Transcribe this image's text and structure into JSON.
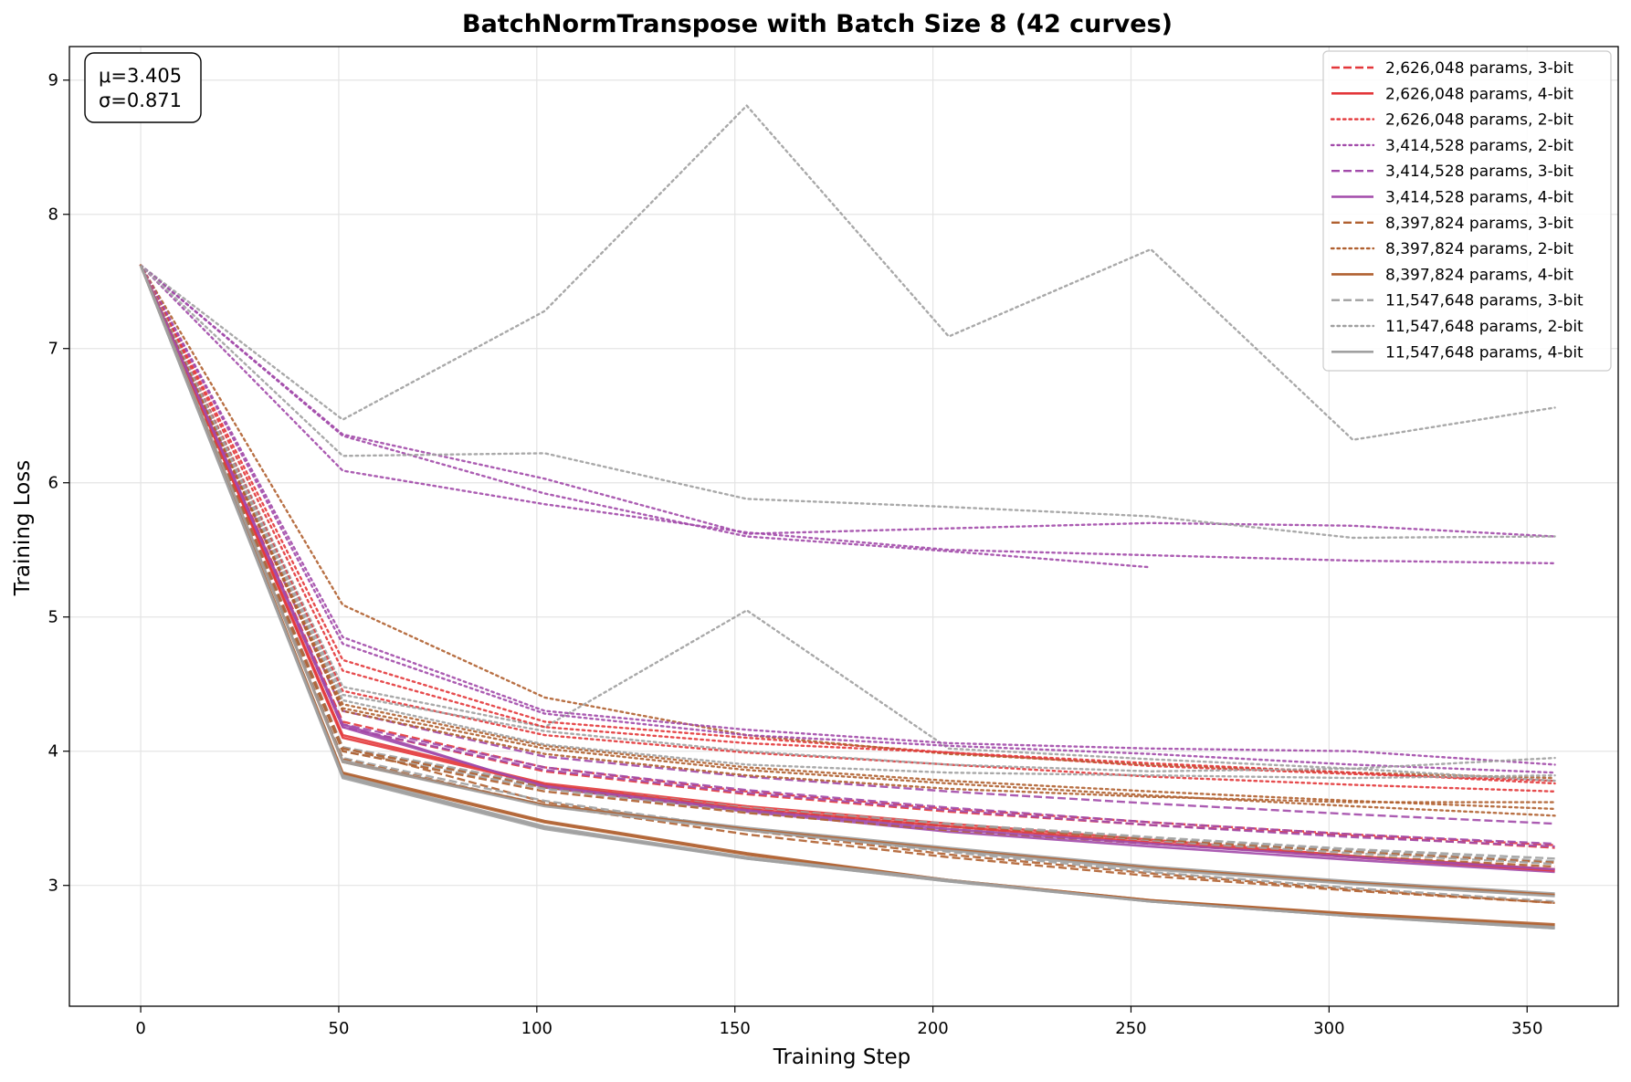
{
  "chart_data": {
    "type": "line",
    "title": "BatchNormTranspose with Batch Size 8 (42 curves)",
    "xlabel": "Training Step",
    "ylabel": "Training Loss",
    "xlim": [
      -18,
      373
    ],
    "ylim": [
      2.1,
      9.25
    ],
    "xticks": [
      0,
      50,
      100,
      150,
      200,
      250,
      300,
      350
    ],
    "yticks": [
      3,
      4,
      5,
      6,
      7,
      8,
      9
    ],
    "grid": true,
    "legend_position": "top-right",
    "stats": {
      "mu": "μ=3.405",
      "sigma": "σ=0.871"
    },
    "colors": {
      "red": "#e3373a",
      "purple": "#a24aaa",
      "brown": "#b06030",
      "gray": "#a0a0a0"
    },
    "series": [
      {
        "name": "2,626,048 params, 3-bit",
        "color": "red",
        "style": "dashed",
        "legend": true,
        "x": [
          0,
          51,
          102,
          153,
          204,
          255,
          306,
          357
        ],
        "y": [
          7.62,
          4.18,
          3.85,
          3.68,
          3.55,
          3.45,
          3.37,
          3.28
        ]
      },
      {
        "name": "2,626,048 params, 4-bit",
        "color": "red",
        "style": "solid",
        "legend": true,
        "x": [
          0,
          51,
          102,
          153,
          204,
          255,
          306,
          357
        ],
        "y": [
          7.62,
          4.12,
          3.76,
          3.59,
          3.46,
          3.34,
          3.22,
          3.12
        ]
      },
      {
        "name": "2,626,048 params, 2-bit",
        "color": "red",
        "style": "dotted",
        "legend": true,
        "x": [
          0,
          51,
          102,
          153,
          204,
          255,
          306,
          357
        ],
        "y": [
          7.62,
          4.68,
          4.22,
          4.1,
          3.99,
          3.89,
          3.83,
          3.78
        ]
      },
      {
        "name": "3,414,528 params, 2-bit",
        "color": "purple",
        "style": "dotted",
        "legend": true,
        "x": [
          0,
          51,
          102,
          153,
          204,
          255,
          306,
          357
        ],
        "y": [
          7.62,
          6.36,
          6.03,
          5.62,
          5.66,
          5.7,
          5.68,
          5.6
        ]
      },
      {
        "name": "3,414,528 params, 3-bit",
        "color": "purple",
        "style": "dashed",
        "legend": true,
        "x": [
          0,
          51,
          102,
          153,
          204,
          255,
          306,
          357
        ],
        "y": [
          7.62,
          4.3,
          3.96,
          3.81,
          3.7,
          3.61,
          3.53,
          3.46
        ]
      },
      {
        "name": "3,414,528 params, 4-bit",
        "color": "purple",
        "style": "solid",
        "legend": true,
        "x": [
          0,
          51,
          102,
          153,
          204,
          255,
          306,
          357
        ],
        "y": [
          7.62,
          4.2,
          3.73,
          3.55,
          3.4,
          3.29,
          3.19,
          3.1
        ]
      },
      {
        "name": "8,397,824 params, 3-bit",
        "color": "brown",
        "style": "dashed",
        "legend": true,
        "x": [
          0,
          51,
          102,
          153,
          204,
          255,
          306,
          357
        ],
        "y": [
          7.62,
          4.03,
          3.62,
          3.41,
          3.23,
          3.09,
          2.97,
          2.87
        ]
      },
      {
        "name": "8,397,824 params, 2-bit",
        "color": "brown",
        "style": "dotted",
        "legend": true,
        "x": [
          0,
          51,
          102,
          153,
          204,
          255,
          306,
          357
        ],
        "y": [
          7.62,
          5.09,
          4.4,
          4.12,
          3.98,
          3.9,
          3.84,
          3.8
        ]
      },
      {
        "name": "8,397,824 params, 4-bit",
        "color": "brown",
        "style": "solid",
        "legend": true,
        "x": [
          0,
          51,
          102,
          153,
          204,
          255,
          306,
          357
        ],
        "y": [
          7.62,
          3.84,
          3.48,
          3.24,
          3.04,
          2.89,
          2.79,
          2.71
        ]
      },
      {
        "name": "11,547,648 params, 3-bit",
        "color": "gray",
        "style": "dashed",
        "legend": true,
        "x": [
          0,
          51,
          102,
          153,
          204,
          255,
          306,
          357
        ],
        "y": [
          7.62,
          4.02,
          3.74,
          3.57,
          3.45,
          3.35,
          3.26,
          3.18
        ]
      },
      {
        "name": "11,547,648 params, 2-bit",
        "color": "gray",
        "style": "dotted",
        "legend": true,
        "x": [
          0,
          51,
          102,
          153,
          204,
          255,
          306,
          357
        ],
        "y": [
          7.62,
          6.47,
          7.28,
          8.81,
          7.09,
          7.74,
          6.32,
          6.56
        ]
      },
      {
        "name": "11,547,648 params, 4-bit",
        "color": "gray",
        "style": "solid",
        "legend": true,
        "x": [
          0,
          51,
          102,
          153,
          204,
          255,
          306,
          357
        ],
        "y": [
          7.62,
          3.81,
          3.43,
          3.2,
          3.03,
          2.88,
          2.77,
          2.68
        ]
      },
      {
        "name": "",
        "color": "purple",
        "style": "dotted",
        "legend": false,
        "x": [
          0,
          51,
          102,
          153,
          204,
          255
        ],
        "y": [
          7.62,
          6.35,
          5.92,
          5.6,
          5.49,
          5.37
        ]
      },
      {
        "name": "",
        "color": "purple",
        "style": "dotted",
        "legend": false,
        "x": [
          0,
          51,
          102,
          153,
          204,
          255,
          306,
          357
        ],
        "y": [
          7.62,
          6.09,
          5.84,
          5.63,
          5.5,
          5.46,
          5.42,
          5.4
        ]
      },
      {
        "name": "",
        "color": "gray",
        "style": "dotted",
        "legend": false,
        "x": [
          0,
          51,
          102,
          153,
          204,
          255,
          306,
          357
        ],
        "y": [
          7.62,
          6.2,
          6.22,
          5.88,
          5.82,
          5.75,
          5.59,
          5.6
        ]
      },
      {
        "name": "",
        "color": "gray",
        "style": "dotted",
        "legend": false,
        "x": [
          0,
          51,
          102,
          153,
          204,
          255,
          306,
          357
        ],
        "y": [
          7.62,
          4.48,
          4.18,
          5.05,
          4.02,
          3.94,
          3.87,
          3.78
        ]
      },
      {
        "name": "",
        "color": "purple",
        "style": "dotted",
        "legend": false,
        "x": [
          0,
          51,
          102,
          153,
          204,
          255,
          306,
          357
        ],
        "y": [
          7.62,
          4.85,
          4.3,
          4.16,
          4.06,
          4.02,
          4.0,
          3.9
        ]
      },
      {
        "name": "",
        "color": "purple",
        "style": "dotted",
        "legend": false,
        "x": [
          0,
          51,
          102,
          153,
          204,
          255,
          306,
          357
        ],
        "y": [
          7.62,
          4.8,
          4.28,
          4.12,
          4.04,
          3.98,
          3.9,
          3.84
        ]
      },
      {
        "name": "",
        "color": "red",
        "style": "dotted",
        "legend": false,
        "x": [
          0,
          51,
          102,
          153,
          204,
          255,
          306,
          357
        ],
        "y": [
          7.62,
          4.6,
          4.18,
          4.06,
          3.99,
          3.91,
          3.84,
          3.76
        ]
      },
      {
        "name": "",
        "color": "red",
        "style": "dotted",
        "legend": false,
        "x": [
          0,
          51,
          102,
          153,
          204,
          255,
          306,
          357
        ],
        "y": [
          7.62,
          4.45,
          4.12,
          3.99,
          3.9,
          3.81,
          3.75,
          3.7
        ]
      },
      {
        "name": "",
        "color": "brown",
        "style": "dotted",
        "legend": false,
        "x": [
          0,
          51,
          102,
          153,
          204,
          255,
          306,
          357
        ],
        "y": [
          7.62,
          4.35,
          4.04,
          3.88,
          3.78,
          3.7,
          3.63,
          3.57
        ]
      },
      {
        "name": "",
        "color": "brown",
        "style": "dotted",
        "legend": false,
        "x": [
          0,
          51,
          102,
          153,
          204,
          255,
          306,
          357
        ],
        "y": [
          7.62,
          4.32,
          4.02,
          3.86,
          3.76,
          3.67,
          3.59,
          3.52
        ]
      },
      {
        "name": "",
        "color": "gray",
        "style": "dotted",
        "legend": false,
        "x": [
          0,
          51,
          102,
          153,
          204,
          255,
          306,
          357
        ],
        "y": [
          7.62,
          4.42,
          4.15,
          4.0,
          3.9,
          3.85,
          3.87,
          3.95
        ]
      },
      {
        "name": "",
        "color": "gray",
        "style": "dotted",
        "legend": false,
        "x": [
          0,
          51,
          102,
          153,
          204,
          255,
          306,
          357
        ],
        "y": [
          7.62,
          4.38,
          4.05,
          3.9,
          3.84,
          3.82,
          3.8,
          3.82
        ]
      },
      {
        "name": "",
        "color": "brown",
        "style": "dotted",
        "legend": false,
        "x": [
          0,
          51,
          102,
          153,
          204,
          255,
          306,
          357
        ],
        "y": [
          7.62,
          4.3,
          3.98,
          3.82,
          3.72,
          3.66,
          3.62,
          3.62
        ]
      },
      {
        "name": "",
        "color": "red",
        "style": "dashed",
        "legend": false,
        "x": [
          0,
          51,
          102,
          153,
          204,
          255,
          306,
          357
        ],
        "y": [
          7.62,
          4.22,
          3.88,
          3.7,
          3.57,
          3.47,
          3.38,
          3.3
        ]
      },
      {
        "name": "",
        "color": "purple",
        "style": "dashed",
        "legend": false,
        "x": [
          0,
          51,
          102,
          153,
          204,
          255,
          306,
          357
        ],
        "y": [
          7.62,
          4.2,
          3.88,
          3.71,
          3.58,
          3.47,
          3.38,
          3.31
        ]
      },
      {
        "name": "",
        "color": "purple",
        "style": "dashed",
        "legend": false,
        "x": [
          0,
          51,
          102,
          153,
          204,
          255,
          306,
          357
        ],
        "y": [
          7.62,
          4.18,
          3.86,
          3.69,
          3.56,
          3.45,
          3.36,
          3.29
        ]
      },
      {
        "name": "",
        "color": "gray",
        "style": "dashed",
        "legend": false,
        "x": [
          0,
          51,
          102,
          153,
          204,
          255,
          306,
          357
        ],
        "y": [
          7.62,
          4.03,
          3.75,
          3.58,
          3.46,
          3.36,
          3.27,
          3.2
        ]
      },
      {
        "name": "",
        "color": "brown",
        "style": "dashed",
        "legend": false,
        "x": [
          0,
          51,
          102,
          153,
          204,
          255,
          306,
          357
        ],
        "y": [
          7.62,
          4.02,
          3.73,
          3.56,
          3.44,
          3.34,
          3.25,
          3.17
        ]
      },
      {
        "name": "",
        "color": "gray",
        "style": "dashed",
        "legend": false,
        "x": [
          0,
          51,
          102,
          153,
          204,
          255,
          306,
          357
        ],
        "y": [
          7.62,
          4.0,
          3.72,
          3.55,
          3.43,
          3.33,
          3.24,
          3.16
        ]
      },
      {
        "name": "",
        "color": "brown",
        "style": "dashed",
        "legend": false,
        "x": [
          0,
          51,
          102,
          153,
          204,
          255,
          306,
          357
        ],
        "y": [
          7.62,
          4.0,
          3.7,
          3.54,
          3.41,
          3.31,
          3.22,
          3.14
        ]
      },
      {
        "name": "",
        "color": "red",
        "style": "solid",
        "legend": false,
        "x": [
          0,
          51,
          102,
          153,
          204,
          255,
          306,
          357
        ],
        "y": [
          7.62,
          4.1,
          3.75,
          3.57,
          3.44,
          3.32,
          3.21,
          3.11
        ]
      },
      {
        "name": "",
        "color": "purple",
        "style": "solid",
        "legend": false,
        "x": [
          0,
          51,
          102,
          153,
          204,
          255,
          306,
          357
        ],
        "y": [
          7.62,
          4.18,
          3.74,
          3.56,
          3.42,
          3.31,
          3.21,
          3.12
        ]
      },
      {
        "name": "",
        "color": "gray",
        "style": "dashed",
        "legend": false,
        "x": [
          0,
          51,
          102,
          153,
          204,
          255,
          306,
          357
        ],
        "y": [
          7.62,
          3.95,
          3.63,
          3.42,
          3.25,
          3.1,
          2.98,
          2.88
        ]
      },
      {
        "name": "",
        "color": "brown",
        "style": "dashed",
        "legend": false,
        "x": [
          0,
          51,
          102,
          153,
          204,
          255,
          306,
          357
        ],
        "y": [
          7.62,
          3.94,
          3.6,
          3.38,
          3.21,
          3.07,
          2.96,
          2.87
        ]
      },
      {
        "name": "",
        "color": "gray",
        "style": "solid",
        "legend": false,
        "x": [
          0,
          51,
          102,
          153,
          204,
          255,
          306,
          357
        ],
        "y": [
          7.62,
          3.93,
          3.6,
          3.43,
          3.28,
          3.14,
          3.03,
          2.94
        ]
      },
      {
        "name": "",
        "color": "brown",
        "style": "solid",
        "legend": false,
        "x": [
          0,
          51,
          102,
          153,
          204,
          255,
          306,
          357
        ],
        "y": [
          7.62,
          3.92,
          3.6,
          3.42,
          3.27,
          3.13,
          3.02,
          2.93
        ]
      },
      {
        "name": "",
        "color": "gray",
        "style": "solid",
        "legend": false,
        "x": [
          0,
          51,
          102,
          153,
          204,
          255,
          306,
          357
        ],
        "y": [
          7.62,
          3.92,
          3.59,
          3.41,
          3.26,
          3.12,
          3.01,
          2.92
        ]
      },
      {
        "name": "",
        "color": "brown",
        "style": "solid",
        "legend": false,
        "x": [
          0,
          51,
          102,
          153,
          204,
          255,
          306,
          357
        ],
        "y": [
          7.62,
          3.83,
          3.47,
          3.23,
          3.04,
          2.89,
          2.78,
          2.7
        ]
      },
      {
        "name": "",
        "color": "gray",
        "style": "solid",
        "legend": false,
        "x": [
          0,
          51,
          102,
          153,
          204,
          255,
          306,
          357
        ],
        "y": [
          7.62,
          3.82,
          3.44,
          3.21,
          3.04,
          2.88,
          2.77,
          2.69
        ]
      },
      {
        "name": "",
        "color": "gray",
        "style": "solid",
        "legend": false,
        "x": [
          0,
          51,
          102,
          153,
          204,
          255,
          306,
          357
        ],
        "y": [
          7.62,
          3.8,
          3.42,
          3.2,
          3.03,
          2.88,
          2.77,
          2.68
        ]
      }
    ]
  }
}
